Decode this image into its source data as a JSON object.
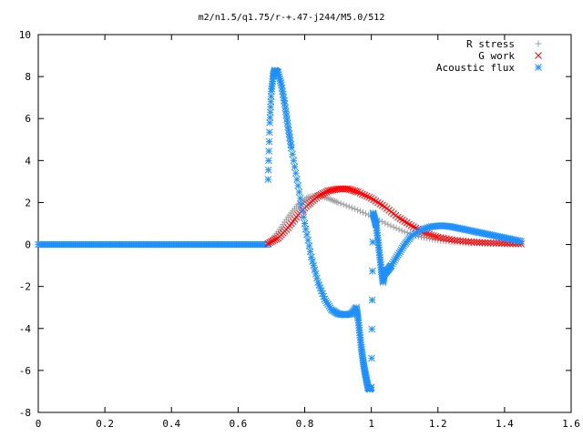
{
  "chart_data": {
    "type": "scatter",
    "title": "m2/n1.5/q1.75/r-+.47-j244/M5.0/512",
    "xlabel": "",
    "ylabel": "",
    "xlim": [
      0,
      1.6
    ],
    "ylim": [
      -8,
      10
    ],
    "grid": false,
    "legend_position": "top-right",
    "xticks": [
      "0",
      "0.2",
      "0.4",
      "0.6",
      "0.8",
      "1",
      "1.2",
      "1.4",
      "1.6"
    ],
    "yticks": [
      "10",
      "8",
      "6",
      "4",
      "2",
      "0",
      "-2",
      "-4",
      "-6",
      "-8"
    ],
    "series": [
      {
        "name": "R stress",
        "marker": "plus",
        "color": "#a0a0a0",
        "x": [
          0.69,
          0.72,
          0.75,
          0.78,
          0.81,
          0.84,
          0.87,
          0.9,
          0.95,
          1.0,
          1.05,
          1.1,
          1.15,
          1.2,
          1.25,
          1.3,
          1.35,
          1.4,
          1.45
        ],
        "y": [
          0.05,
          0.6,
          1.3,
          1.9,
          2.25,
          2.35,
          2.2,
          2.0,
          1.7,
          1.35,
          0.95,
          0.6,
          0.35,
          0.2,
          0.12,
          0.08,
          0.05,
          0.03,
          0.02
        ]
      },
      {
        "name": "G work",
        "marker": "cross",
        "color": "#ff0000",
        "x": [
          0.69,
          0.72,
          0.75,
          0.78,
          0.81,
          0.84,
          0.87,
          0.9,
          0.93,
          0.96,
          1.0,
          1.04,
          1.08,
          1.12,
          1.16,
          1.2,
          1.25,
          1.3,
          1.35,
          1.4,
          1.45
        ],
        "y": [
          0.05,
          0.3,
          0.8,
          1.4,
          1.9,
          2.3,
          2.55,
          2.65,
          2.65,
          2.5,
          2.2,
          1.8,
          1.3,
          0.9,
          0.55,
          0.35,
          0.2,
          0.12,
          0.08,
          0.05,
          0.03
        ]
      },
      {
        "name": "Acoustic flux",
        "marker": "star",
        "color": "#1e90ff",
        "x": [
          0.69,
          0.695,
          0.7,
          0.705,
          0.71,
          0.72,
          0.73,
          0.74,
          0.75,
          0.76,
          0.78,
          0.8,
          0.82,
          0.84,
          0.86,
          0.88,
          0.9,
          0.92,
          0.94,
          0.955,
          0.96,
          0.965,
          0.97,
          0.975,
          0.98,
          0.985,
          0.99,
          0.995,
          1.0,
          1.005,
          1.01,
          1.015,
          1.02,
          1.025,
          1.03,
          1.035,
          1.04,
          1.05,
          1.06,
          1.08,
          1.1,
          1.12,
          1.15,
          1.18,
          1.21,
          1.24,
          1.27,
          1.3,
          1.33,
          1.36,
          1.39,
          1.42,
          1.45
        ],
        "y": [
          3.1,
          5.8,
          7.3,
          8.0,
          8.3,
          8.2,
          7.6,
          6.7,
          5.6,
          4.6,
          2.8,
          1.0,
          -0.6,
          -1.8,
          -2.6,
          -3.1,
          -3.3,
          -3.35,
          -3.3,
          -3.0,
          -3.5,
          -4.2,
          -4.9,
          -5.5,
          -6.0,
          -6.4,
          -6.8,
          -6.9,
          -6.8,
          1.5,
          1.2,
          0.9,
          0.2,
          -0.5,
          -1.2,
          -1.8,
          -1.4,
          -1.2,
          -1.0,
          -0.5,
          0.0,
          0.4,
          0.7,
          0.85,
          0.9,
          0.85,
          0.75,
          0.65,
          0.55,
          0.45,
          0.35,
          0.25,
          0.15
        ]
      }
    ],
    "baseline_series": {
      "name": "Acoustic flux",
      "x_from": 0.0,
      "x_to": 0.69,
      "y": 0
    }
  }
}
